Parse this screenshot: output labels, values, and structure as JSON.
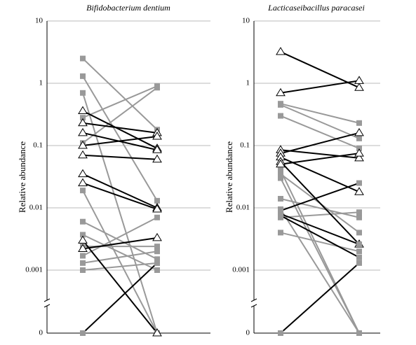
{
  "chart_data": [
    {
      "type": "paired-line",
      "title": "Bifidobacterium dentium",
      "y_label": "Relative abundance",
      "log_scale": true,
      "axis_break": true,
      "grid": true,
      "ylim": [
        0.001,
        10
      ],
      "yticks": [
        0,
        0.001,
        0.01,
        0.1,
        1,
        10
      ],
      "series": [
        {
          "color": "#999999",
          "marker": "square",
          "values": [
            2.5,
            0.18
          ]
        },
        {
          "color": "#999999",
          "marker": "square",
          "values": [
            1.3,
            0.013
          ]
        },
        {
          "color": "#999999",
          "marker": "square",
          "values": [
            0.7,
            0
          ]
        },
        {
          "color": "#999999",
          "marker": "square",
          "values": [
            0.28,
            0.9
          ]
        },
        {
          "color": "#999999",
          "marker": "square",
          "values": [
            0.11,
            0.85
          ]
        },
        {
          "color": "#999999",
          "marker": "square",
          "values": [
            0.019,
            0
          ]
        },
        {
          "color": "#999999",
          "marker": "square",
          "values": [
            0.006,
            0.0015
          ]
        },
        {
          "color": "#999999",
          "marker": "square",
          "values": [
            0.0037,
            0.001
          ]
        },
        {
          "color": "#999999",
          "marker": "square",
          "values": [
            0.0024,
            0.0024
          ]
        },
        {
          "color": "#999999",
          "marker": "square",
          "values": [
            0.0017,
            0.007
          ]
        },
        {
          "color": "#999999",
          "marker": "square",
          "values": [
            0.0013,
            0.002
          ]
        },
        {
          "color": "#999999",
          "marker": "square",
          "values": [
            0.001,
            0.0013
          ]
        },
        {
          "color": "#000000",
          "marker": "triangle",
          "values": [
            0.36,
            0.09
          ]
        },
        {
          "color": "#000000",
          "marker": "triangle",
          "values": [
            0.23,
            0.16
          ]
        },
        {
          "color": "#000000",
          "marker": "triangle",
          "values": [
            0.16,
            0.085
          ]
        },
        {
          "color": "#000000",
          "marker": "triangle",
          "values": [
            0.1,
            0.14
          ]
        },
        {
          "color": "#000000",
          "marker": "triangle",
          "values": [
            0.07,
            0.06
          ]
        },
        {
          "color": "#000000",
          "marker": "triangle",
          "values": [
            0.035,
            0.01
          ]
        },
        {
          "color": "#000000",
          "marker": "triangle",
          "values": [
            0.025,
            0.0095
          ]
        },
        {
          "color": "#000000",
          "marker": "triangle",
          "values": [
            0.003,
            0
          ]
        },
        {
          "color": "#000000",
          "marker": "triangle",
          "values": [
            0.0022,
            0.0033
          ]
        },
        {
          "color": "#000000",
          "marker": "square",
          "values": [
            0,
            0.0013
          ]
        }
      ]
    },
    {
      "type": "paired-line",
      "title": "Lacticaseibacillus paracasei",
      "y_label": "Relative abundance",
      "log_scale": true,
      "axis_break": true,
      "grid": true,
      "ylim": [
        0.001,
        10
      ],
      "yticks": [
        0,
        0.001,
        0.01,
        0.1,
        1,
        10
      ],
      "series": [
        {
          "color": "#999999",
          "marker": "square",
          "values": [
            0.47,
            0.23
          ]
        },
        {
          "color": "#999999",
          "marker": "square",
          "values": [
            0.45,
            0.13
          ]
        },
        {
          "color": "#999999",
          "marker": "square",
          "values": [
            0.3,
            0.09
          ]
        },
        {
          "color": "#999999",
          "marker": "square",
          "values": [
            0.04,
            0
          ]
        },
        {
          "color": "#999999",
          "marker": "square",
          "values": [
            0.035,
            0.004
          ]
        },
        {
          "color": "#999999",
          "marker": "square",
          "values": [
            0.03,
            0
          ]
        },
        {
          "color": "#999999",
          "marker": "square",
          "values": [
            0.014,
            0.007
          ]
        },
        {
          "color": "#999999",
          "marker": "square",
          "values": [
            0.0095,
            0
          ]
        },
        {
          "color": "#999999",
          "marker": "square",
          "values": [
            0.007,
            0.0085
          ]
        },
        {
          "color": "#999999",
          "marker": "square",
          "values": [
            0.004,
            0.002
          ]
        },
        {
          "color": "#000000",
          "marker": "triangle",
          "values": [
            3.2,
            0.85
          ]
        },
        {
          "color": "#000000",
          "marker": "triangle",
          "values": [
            0.7,
            1.1
          ]
        },
        {
          "color": "#000000",
          "marker": "triangle",
          "values": [
            0.085,
            0.063
          ]
        },
        {
          "color": "#000000",
          "marker": "triangle",
          "values": [
            0.075,
            0.16
          ]
        },
        {
          "color": "#000000",
          "marker": "triangle",
          "values": [
            0.065,
            0.018
          ]
        },
        {
          "color": "#000000",
          "marker": "triangle",
          "values": [
            0.055,
            0.0026
          ]
        },
        {
          "color": "#000000",
          "marker": "triangle",
          "values": [
            0.05,
            0.075
          ]
        },
        {
          "color": "#000000",
          "marker": "square",
          "values": [
            0.009,
            0.025
          ]
        },
        {
          "color": "#000000",
          "marker": "square",
          "values": [
            0.008,
            0.0026
          ]
        },
        {
          "color": "#000000",
          "marker": "square",
          "values": [
            0.0075,
            0.0016
          ]
        },
        {
          "color": "#000000",
          "marker": "square",
          "values": [
            0,
            0.0013
          ]
        }
      ]
    }
  ]
}
